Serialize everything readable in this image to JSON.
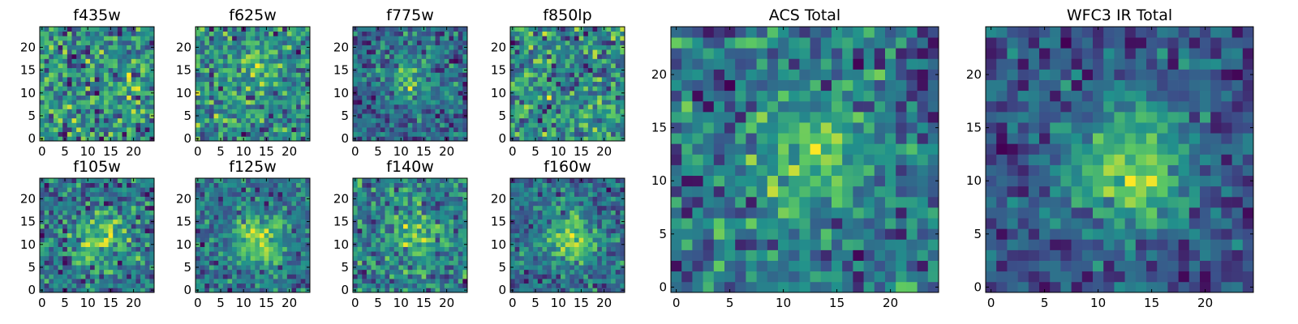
{
  "chart_data": [
    {
      "type": "heatmap",
      "title": "f435w",
      "grid_size": 25,
      "xlim": [
        0,
        24
      ],
      "ylim": [
        0,
        24
      ],
      "x_ticks": [
        0,
        5,
        10,
        15,
        20
      ],
      "y_ticks": [
        0,
        5,
        10,
        15,
        20
      ],
      "source_center": null,
      "peak_strength": 0
    },
    {
      "type": "heatmap",
      "title": "f625w",
      "grid_size": 25,
      "xlim": [
        0,
        24
      ],
      "ylim": [
        0,
        24
      ],
      "x_ticks": [
        0,
        5,
        10,
        15,
        20
      ],
      "y_ticks": [
        0,
        5,
        10,
        15,
        20
      ],
      "source_center": [
        12,
        16
      ],
      "peak_strength": 0.15
    },
    {
      "type": "heatmap",
      "title": "f775w",
      "grid_size": 25,
      "xlim": [
        0,
        24
      ],
      "ylim": [
        0,
        24
      ],
      "x_ticks": [
        0,
        5,
        10,
        15,
        20
      ],
      "y_ticks": [
        0,
        5,
        10,
        15,
        20
      ],
      "source_center": [
        12,
        13
      ],
      "peak_strength": 0.35
    },
    {
      "type": "heatmap",
      "title": "f850lp",
      "grid_size": 25,
      "xlim": [
        0,
        24
      ],
      "ylim": [
        0,
        24
      ],
      "x_ticks": [
        0,
        5,
        10,
        15,
        20
      ],
      "y_ticks": [
        0,
        5,
        10,
        15,
        20
      ],
      "source_center": null,
      "peak_strength": 0
    },
    {
      "type": "heatmap",
      "title": "f105w",
      "grid_size": 25,
      "xlim": [
        0,
        24
      ],
      "ylim": [
        0,
        24
      ],
      "x_ticks": [
        0,
        5,
        10,
        15,
        20
      ],
      "y_ticks": [
        0,
        5,
        10,
        15,
        20
      ],
      "source_center": [
        13,
        11
      ],
      "peak_strength": 0.35
    },
    {
      "type": "heatmap",
      "title": "f125w",
      "grid_size": 25,
      "xlim": [
        0,
        24
      ],
      "ylim": [
        0,
        24
      ],
      "x_ticks": [
        0,
        5,
        10,
        15,
        20
      ],
      "y_ticks": [
        0,
        5,
        10,
        15,
        20
      ],
      "source_center": [
        13,
        11
      ],
      "peak_strength": 0.55
    },
    {
      "type": "heatmap",
      "title": "f140w",
      "grid_size": 25,
      "xlim": [
        0,
        24
      ],
      "ylim": [
        0,
        24
      ],
      "x_ticks": [
        0,
        5,
        10,
        15,
        20
      ],
      "y_ticks": [
        0,
        5,
        10,
        15,
        20
      ],
      "source_center": [
        13,
        12
      ],
      "peak_strength": 0.3
    },
    {
      "type": "heatmap",
      "title": "f160w",
      "grid_size": 25,
      "xlim": [
        0,
        24
      ],
      "ylim": [
        0,
        24
      ],
      "x_ticks": [
        0,
        5,
        10,
        15,
        20
      ],
      "y_ticks": [
        0,
        5,
        10,
        15,
        20
      ],
      "source_center": [
        13,
        11
      ],
      "peak_strength": 0.55
    },
    {
      "type": "heatmap",
      "title": "ACS Total",
      "grid_size": 25,
      "xlim": [
        0,
        24
      ],
      "ylim": [
        0,
        24
      ],
      "x_ticks": [
        0,
        5,
        10,
        15,
        20
      ],
      "y_ticks": [
        0,
        5,
        10,
        15,
        20
      ],
      "source_center": [
        12,
        12
      ],
      "peak_strength": 0.35
    },
    {
      "type": "heatmap",
      "title": "WFC3 IR Total",
      "grid_size": 25,
      "xlim": [
        0,
        24
      ],
      "ylim": [
        0,
        24
      ],
      "x_ticks": [
        0,
        5,
        10,
        15,
        20
      ],
      "y_ticks": [
        0,
        5,
        10,
        15,
        20
      ],
      "source_center": [
        13,
        11
      ],
      "peak_strength": 0.85
    }
  ],
  "colormap": "viridis",
  "colormap_stops": [
    "#440154",
    "#3b528b",
    "#21918c",
    "#5ec962",
    "#fde725"
  ]
}
